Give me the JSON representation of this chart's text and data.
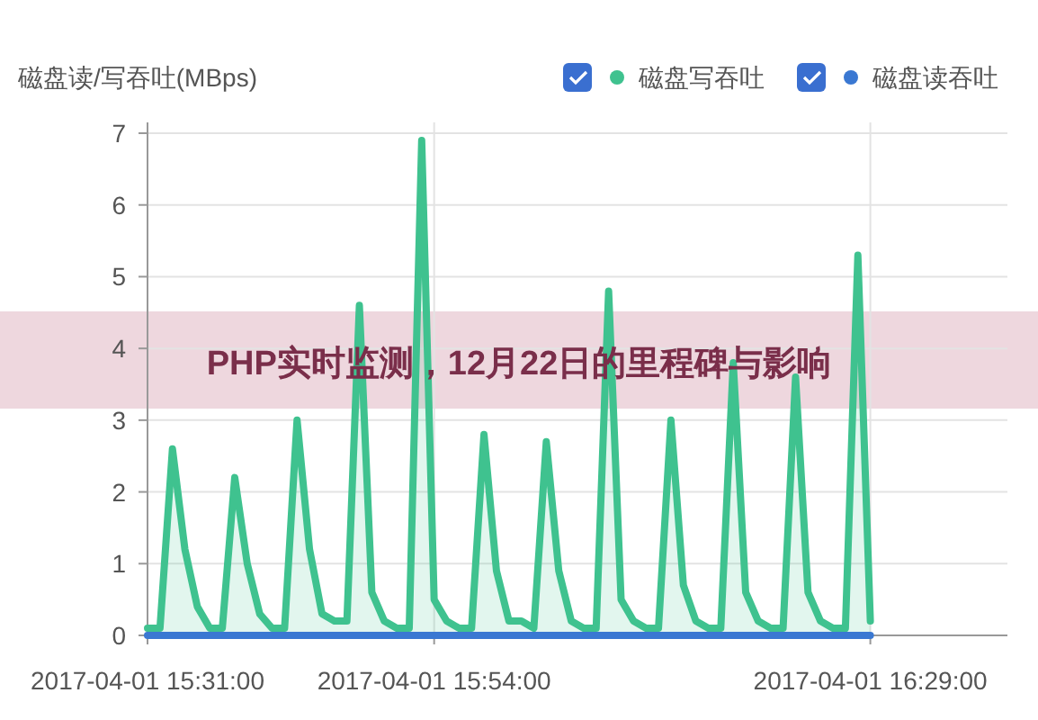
{
  "chart_data": {
    "type": "line",
    "title": "PHP实时监测，12月22日的里程碑与影响",
    "ylabel": "磁盘读/写吞吐(MBps)",
    "x": [
      "2017-04-01T15:31",
      "2017-04-01T15:32",
      "2017-04-01T15:33",
      "2017-04-01T15:34",
      "2017-04-01T15:35",
      "2017-04-01T15:36",
      "2017-04-01T15:37",
      "2017-04-01T15:38",
      "2017-04-01T15:39",
      "2017-04-01T15:40",
      "2017-04-01T15:41",
      "2017-04-01T15:42",
      "2017-04-01T15:43",
      "2017-04-01T15:44",
      "2017-04-01T15:45",
      "2017-04-01T15:46",
      "2017-04-01T15:47",
      "2017-04-01T15:48",
      "2017-04-01T15:49",
      "2017-04-01T15:50",
      "2017-04-01T15:51",
      "2017-04-01T15:52",
      "2017-04-01T15:53",
      "2017-04-01T15:54",
      "2017-04-01T15:55",
      "2017-04-01T15:56",
      "2017-04-01T15:57",
      "2017-04-01T15:58",
      "2017-04-01T15:59",
      "2017-04-01T16:00",
      "2017-04-01T16:01",
      "2017-04-01T16:02",
      "2017-04-01T16:03",
      "2017-04-01T16:04",
      "2017-04-01T16:05",
      "2017-04-01T16:06",
      "2017-04-01T16:07",
      "2017-04-01T16:08",
      "2017-04-01T16:09",
      "2017-04-01T16:10",
      "2017-04-01T16:11",
      "2017-04-01T16:12",
      "2017-04-01T16:13",
      "2017-04-01T16:14",
      "2017-04-01T16:15",
      "2017-04-01T16:16",
      "2017-04-01T16:17",
      "2017-04-01T16:18",
      "2017-04-01T16:19",
      "2017-04-01T16:20",
      "2017-04-01T16:21",
      "2017-04-01T16:22",
      "2017-04-01T16:23",
      "2017-04-01T16:24",
      "2017-04-01T16:25",
      "2017-04-01T16:26",
      "2017-04-01T16:27",
      "2017-04-01T16:28",
      "2017-04-01T16:29"
    ],
    "series": [
      {
        "name": "磁盘写吞吐",
        "type": "area",
        "color": "#3fc28f",
        "values": [
          0.1,
          0.1,
          2.6,
          1.2,
          0.4,
          0.1,
          0.1,
          2.2,
          1.0,
          0.3,
          0.1,
          0.1,
          3.0,
          1.2,
          0.3,
          0.2,
          0.2,
          4.6,
          0.6,
          0.2,
          0.1,
          0.1,
          6.9,
          0.5,
          0.2,
          0.1,
          0.1,
          2.8,
          0.9,
          0.2,
          0.2,
          0.1,
          2.7,
          0.9,
          0.2,
          0.1,
          0.1,
          4.8,
          0.5,
          0.2,
          0.1,
          0.1,
          3.0,
          0.7,
          0.2,
          0.1,
          0.1,
          3.8,
          0.6,
          0.2,
          0.1,
          0.1,
          3.6,
          0.6,
          0.2,
          0.1,
          0.1,
          5.3,
          0.2
        ]
      },
      {
        "name": "磁盘读吞吐",
        "type": "line",
        "color": "#3a78d2",
        "values": [
          0,
          0,
          0,
          0,
          0,
          0,
          0,
          0,
          0,
          0,
          0,
          0,
          0,
          0,
          0,
          0,
          0,
          0,
          0,
          0,
          0,
          0,
          0,
          0,
          0,
          0,
          0,
          0,
          0,
          0,
          0,
          0,
          0,
          0,
          0,
          0,
          0,
          0,
          0,
          0,
          0,
          0,
          0,
          0,
          0,
          0,
          0,
          0,
          0,
          0,
          0,
          0,
          0,
          0,
          0,
          0,
          0,
          0,
          0
        ]
      }
    ],
    "xlim": [
      "2017-04-01T15:31",
      "2017-04-01T16:40"
    ],
    "xticks": [
      {
        "value": "2017-04-01T15:31",
        "label": "2017-04-01 15:31:00"
      },
      {
        "value": "2017-04-01T15:54",
        "label": "2017-04-01 15:54:00"
      },
      {
        "value": "2017-04-01T16:29",
        "label": "2017-04-01 16:29:00"
      }
    ],
    "ylim": [
      0,
      7
    ],
    "yticks": [
      0,
      1,
      2,
      3,
      4,
      5,
      6,
      7
    ],
    "grid": true,
    "legend": "top right",
    "marker": "none",
    "line_style": "solid"
  }
}
